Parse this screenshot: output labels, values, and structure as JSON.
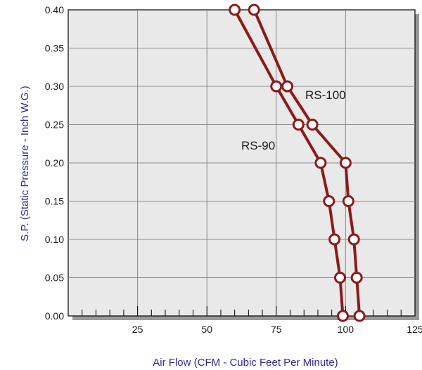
{
  "chart_data": {
    "type": "line",
    "xlabel": "Air Flow (CFM - Cubic Feet Per Minute)",
    "ylabel": "S.P. (Static Pressure - Inch W.G.)",
    "xlim": [
      0,
      125
    ],
    "ylim": [
      0,
      0.4
    ],
    "x_ticks": [
      "25",
      "50",
      "75",
      "100",
      "125"
    ],
    "x_tick_values": [
      25,
      50,
      75,
      100,
      125
    ],
    "y_ticks": [
      "0.00",
      "0.05",
      "0.10",
      "0.15",
      "0.20",
      "0.25",
      "0.30",
      "0.35",
      "0.40"
    ],
    "y_tick_values": [
      0,
      0.05,
      0.1,
      0.15,
      0.2,
      0.25,
      0.3,
      0.35,
      0.4
    ],
    "grid": true,
    "series": [
      {
        "name": "RS-90",
        "x": [
          60,
          75,
          83,
          91,
          94,
          96,
          98,
          99
        ],
        "y": [
          0.4,
          0.3,
          0.25,
          0.2,
          0.15,
          0.1,
          0.05,
          0.0
        ]
      },
      {
        "name": "RS-100",
        "x": [
          67,
          79,
          88,
          100,
          101,
          103,
          104,
          105
        ],
        "y": [
          0.4,
          0.3,
          0.25,
          0.2,
          0.15,
          0.1,
          0.05,
          0.0
        ]
      }
    ],
    "colors": {
      "plot_bg": "#e9e9e9",
      "grid": "#8a8a8a",
      "line": "#8b1a1a",
      "marker_fill": "#ffffff",
      "shadow": "#9a9a9a",
      "axis_title": "#2b2b8c"
    }
  }
}
